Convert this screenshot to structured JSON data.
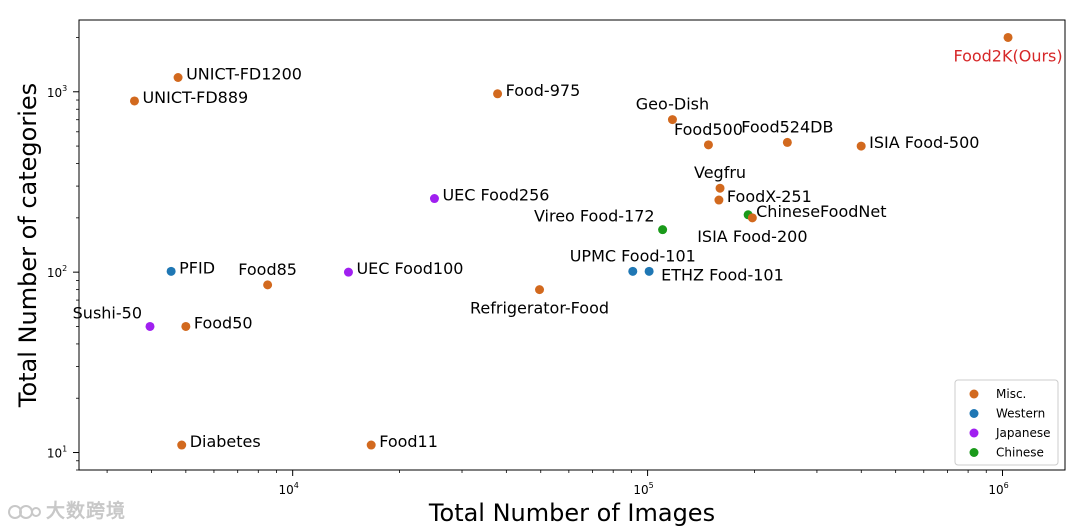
{
  "chart_data": {
    "type": "scatter",
    "xscale": "log",
    "yscale": "log",
    "xlim": [
      2500,
      1500000
    ],
    "ylim": [
      8,
      2500
    ],
    "xlabel": "Total Number of Images",
    "ylabel": "Total Number of categories",
    "xticks": [
      {
        "value": 10000,
        "base": "10",
        "exp": "4"
      },
      {
        "value": 100000,
        "base": "10",
        "exp": "5"
      },
      {
        "value": 1000000,
        "base": "10",
        "exp": "6"
      }
    ],
    "yticks": [
      {
        "value": 10,
        "base": "10",
        "exp": "1"
      },
      {
        "value": 100,
        "base": "10",
        "exp": "2"
      },
      {
        "value": 1000,
        "base": "10",
        "exp": "3"
      }
    ],
    "colors": {
      "Misc.": "#d2691e",
      "Western": "#1f77b4",
      "Japanese": "#a020f0",
      "Chinese": "#1a9a1a",
      "highlight": "#d62728"
    },
    "legend": {
      "position": "bottom-right",
      "entries": [
        "Misc.",
        "Western",
        "Japanese",
        "Chinese"
      ]
    },
    "points": [
      {
        "label": "Food2K(Ours)",
        "x": 1036564,
        "y": 2000,
        "category": "Misc.",
        "highlight": true,
        "anchor": "below"
      },
      {
        "label": "UNICT-FD1200",
        "x": 4754,
        "y": 1200,
        "category": "Misc.",
        "anchor": "right"
      },
      {
        "label": "UNICT-FD889",
        "x": 3583,
        "y": 889,
        "category": "Misc.",
        "anchor": "right"
      },
      {
        "label": "Food-975",
        "x": 37785,
        "y": 975,
        "category": "Misc.",
        "anchor": "right"
      },
      {
        "label": "Geo-Dish",
        "x": 117504,
        "y": 701,
        "category": "Misc.",
        "anchor": "above"
      },
      {
        "label": "Food500",
        "x": 148408,
        "y": 508,
        "category": "Misc.",
        "anchor": "above"
      },
      {
        "label": "Food524DB",
        "x": 247636,
        "y": 524,
        "category": "Misc.",
        "anchor": "above"
      },
      {
        "label": "ISIA Food-500",
        "x": 399726,
        "y": 500,
        "category": "Misc.",
        "anchor": "right"
      },
      {
        "label": "Vegfru",
        "x": 160000,
        "y": 292,
        "category": "Misc.",
        "anchor": "above"
      },
      {
        "label": "FoodX-251",
        "x": 158846,
        "y": 251,
        "category": "Misc.",
        "anchor": "right"
      },
      {
        "label": "ChineseFoodNet",
        "x": 192000,
        "y": 208,
        "category": "Chinese",
        "anchor": "right"
      },
      {
        "label": "ISIA Food-200",
        "x": 197323,
        "y": 200,
        "category": "Misc.",
        "anchor": "below"
      },
      {
        "label": "Vireo Food-172",
        "x": 110241,
        "y": 172,
        "category": "Chinese",
        "anchor": "left-above"
      },
      {
        "label": "UEC Food256",
        "x": 25088,
        "y": 256,
        "category": "Japanese",
        "anchor": "right"
      },
      {
        "label": "UPMC Food-101",
        "x": 90840,
        "y": 101,
        "category": "Western",
        "anchor": "above"
      },
      {
        "label": "ETHZ Food-101",
        "x": 101000,
        "y": 101,
        "category": "Western",
        "anchor": "right-below"
      },
      {
        "label": "Refrigerator-Food",
        "x": 49600,
        "y": 80,
        "category": "Misc.",
        "anchor": "below"
      },
      {
        "label": "PFID",
        "x": 4545,
        "y": 101,
        "category": "Western",
        "anchor": "right"
      },
      {
        "label": "Food85",
        "x": 8500,
        "y": 85,
        "category": "Misc.",
        "anchor": "above"
      },
      {
        "label": "UEC Food100",
        "x": 14361,
        "y": 100,
        "category": "Japanese",
        "anchor": "right"
      },
      {
        "label": "Sushi-50",
        "x": 3963,
        "y": 50,
        "category": "Japanese",
        "anchor": "left-above"
      },
      {
        "label": "Food50",
        "x": 5000,
        "y": 50,
        "category": "Misc.",
        "anchor": "right"
      },
      {
        "label": "Diabetes",
        "x": 4868,
        "y": 11,
        "category": "Misc.",
        "anchor": "right"
      },
      {
        "label": "Food11",
        "x": 16643,
        "y": 11,
        "category": "Misc.",
        "anchor": "right"
      }
    ]
  },
  "watermark": {
    "text": "大数跨境"
  }
}
